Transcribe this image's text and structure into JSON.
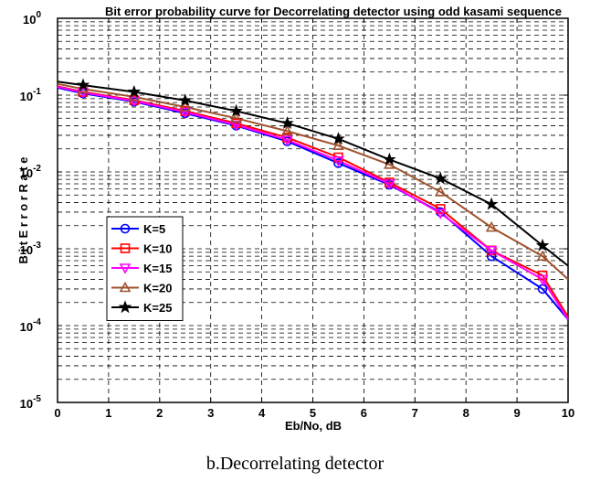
{
  "chart_data": {
    "type": "line",
    "title": "Bit error probability curve for Decorrelating detector using odd kasami sequence",
    "xlabel": "Eb/No, dB",
    "ylabel": "B i t E r r o r R a t e",
    "xlim": [
      0,
      10
    ],
    "ylim": [
      1e-05,
      1
    ],
    "yscale": "log",
    "grid": true,
    "legend_position": "center-left",
    "x_ticks": [
      "0",
      "1",
      "2",
      "3",
      "4",
      "5",
      "6",
      "7",
      "8",
      "9",
      "10"
    ],
    "y_ticks": [
      {
        "base": "10",
        "exp": "0"
      },
      {
        "base": "10",
        "exp": "-1"
      },
      {
        "base": "10",
        "exp": "-2"
      },
      {
        "base": "10",
        "exp": "-3"
      },
      {
        "base": "10",
        "exp": "-4"
      },
      {
        "base": "10",
        "exp": "-5"
      }
    ],
    "x": [
      0,
      0.5,
      1.5,
      2.5,
      3.5,
      4.5,
      5.5,
      6.5,
      7.5,
      8.5,
      9.5,
      10
    ],
    "series": [
      {
        "name": "K=5",
        "color": "#0000ff",
        "marker": "circle",
        "values": [
          0.125,
          0.105,
          0.082,
          0.058,
          0.04,
          0.025,
          0.013,
          0.0068,
          0.003,
          0.0008,
          0.0003,
          0.00012
        ]
      },
      {
        "name": "K=10",
        "color": "#ff0000",
        "marker": "square",
        "values": [
          0.13,
          0.11,
          0.086,
          0.062,
          0.043,
          0.028,
          0.0155,
          0.0073,
          0.0033,
          0.00095,
          0.00045,
          0.00013
        ]
      },
      {
        "name": "K=15",
        "color": "#ff00ff",
        "marker": "triangle-down",
        "values": [
          0.128,
          0.108,
          0.084,
          0.06,
          0.041,
          0.026,
          0.014,
          0.007,
          0.0029,
          0.00095,
          0.0004,
          0.00012
        ]
      },
      {
        "name": "K=20",
        "color": "#a0522d",
        "marker": "triangle-up",
        "values": [
          0.14,
          0.12,
          0.095,
          0.07,
          0.05,
          0.034,
          0.022,
          0.0125,
          0.0055,
          0.0019,
          0.0008,
          0.0004
        ]
      },
      {
        "name": "K=25",
        "color": "#000000",
        "marker": "star",
        "values": [
          0.15,
          0.135,
          0.11,
          0.085,
          0.062,
          0.043,
          0.027,
          0.0145,
          0.0082,
          0.0038,
          0.0011,
          0.0006
        ]
      }
    ]
  },
  "caption": "b.Decorrelating detector"
}
